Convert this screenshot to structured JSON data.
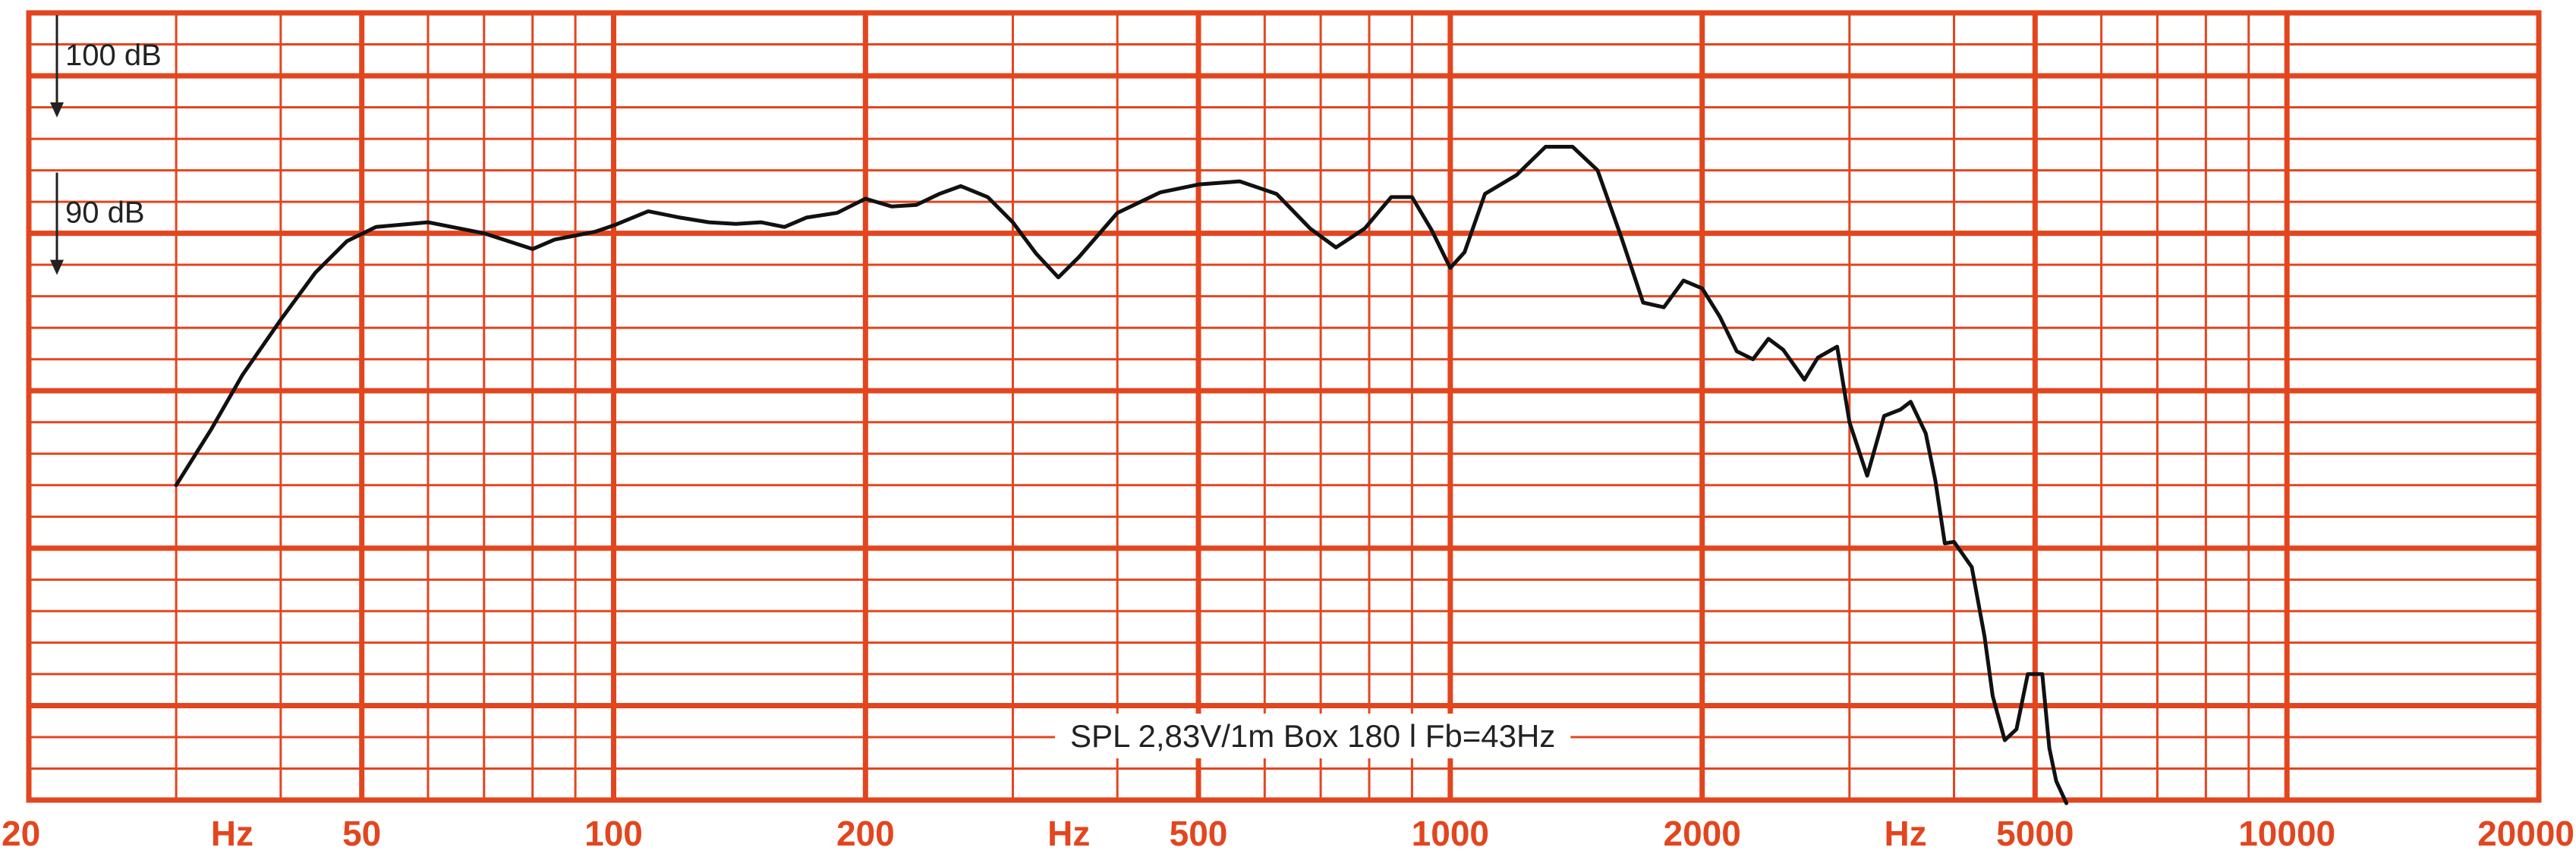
{
  "chart_data": {
    "type": "line",
    "title": "",
    "annotation": "SPL  2,83V/1m    Box 180 l  Fb=43Hz",
    "x_scale": "log",
    "x_range": [
      20,
      20000
    ],
    "y_range_db": [
      54,
      104
    ],
    "grid": true,
    "colors": {
      "grid": "#e2461f",
      "curve": "#111111",
      "background": "#ffffff"
    },
    "x_tick_labels": [
      {
        "label": "20",
        "x": 20
      },
      {
        "label": "Hz",
        "x": 35
      },
      {
        "label": "50",
        "x": 50
      },
      {
        "label": "100",
        "x": 100
      },
      {
        "label": "200",
        "x": 200
      },
      {
        "label": "Hz",
        "x": 350
      },
      {
        "label": "500",
        "x": 500
      },
      {
        "label": "1000",
        "x": 1000
      },
      {
        "label": "2000",
        "x": 2000
      },
      {
        "label": "Hz",
        "x": 3500
      },
      {
        "label": "5000",
        "x": 5000
      },
      {
        "label": "10000",
        "x": 10000
      },
      {
        "label": "20000",
        "x": 20000
      }
    ],
    "y_labels": [
      {
        "label": "100 dB",
        "y": 100
      },
      {
        "label": "90 dB",
        "y": 90
      }
    ],
    "series": [
      {
        "points": [
          [
            30,
            74
          ],
          [
            33,
            77.5
          ],
          [
            36,
            81
          ],
          [
            40,
            84.5
          ],
          [
            44,
            87.5
          ],
          [
            48,
            89.5
          ],
          [
            52,
            90.4
          ],
          [
            60,
            90.7
          ],
          [
            70,
            90
          ],
          [
            80,
            89
          ],
          [
            85,
            89.6
          ],
          [
            95,
            90.1
          ],
          [
            100,
            90.5
          ],
          [
            110,
            91.4
          ],
          [
            120,
            91
          ],
          [
            130,
            90.7
          ],
          [
            140,
            90.6
          ],
          [
            150,
            90.7
          ],
          [
            160,
            90.4
          ],
          [
            170,
            91
          ],
          [
            185,
            91.3
          ],
          [
            200,
            92.2
          ],
          [
            215,
            91.7
          ],
          [
            230,
            91.8
          ],
          [
            245,
            92.5
          ],
          [
            260,
            93
          ],
          [
            280,
            92.3
          ],
          [
            300,
            90.7
          ],
          [
            320,
            88.7
          ],
          [
            340,
            87.2
          ],
          [
            360,
            88.5
          ],
          [
            400,
            91.3
          ],
          [
            450,
            92.6
          ],
          [
            500,
            93.1
          ],
          [
            560,
            93.3
          ],
          [
            620,
            92.5
          ],
          [
            680,
            90.3
          ],
          [
            730,
            89.1
          ],
          [
            790,
            90.3
          ],
          [
            850,
            92.3
          ],
          [
            900,
            92.3
          ],
          [
            950,
            90.2
          ],
          [
            1000,
            87.8
          ],
          [
            1040,
            88.8
          ],
          [
            1100,
            92.5
          ],
          [
            1200,
            93.7
          ],
          [
            1300,
            95.5
          ],
          [
            1400,
            95.5
          ],
          [
            1500,
            94
          ],
          [
            1600,
            89.8
          ],
          [
            1700,
            85.6
          ],
          [
            1800,
            85.3
          ],
          [
            1900,
            87
          ],
          [
            2000,
            86.5
          ],
          [
            2100,
            84.7
          ],
          [
            2200,
            82.5
          ],
          [
            2300,
            82
          ],
          [
            2400,
            83.3
          ],
          [
            2500,
            82.6
          ],
          [
            2650,
            80.7
          ],
          [
            2750,
            82.1
          ],
          [
            2900,
            82.8
          ],
          [
            3000,
            78
          ],
          [
            3150,
            74.6
          ],
          [
            3300,
            78.4
          ],
          [
            3450,
            78.8
          ],
          [
            3550,
            79.3
          ],
          [
            3700,
            77.3
          ],
          [
            3800,
            74.3
          ],
          [
            3900,
            70.3
          ],
          [
            4000,
            70.4
          ],
          [
            4200,
            68.8
          ],
          [
            4350,
            64.4
          ],
          [
            4450,
            60.6
          ],
          [
            4600,
            57.8
          ],
          [
            4750,
            58.5
          ],
          [
            4900,
            62
          ],
          [
            5100,
            62
          ],
          [
            5200,
            57.3
          ],
          [
            5300,
            55.2
          ],
          [
            5450,
            53.8
          ]
        ]
      }
    ]
  }
}
